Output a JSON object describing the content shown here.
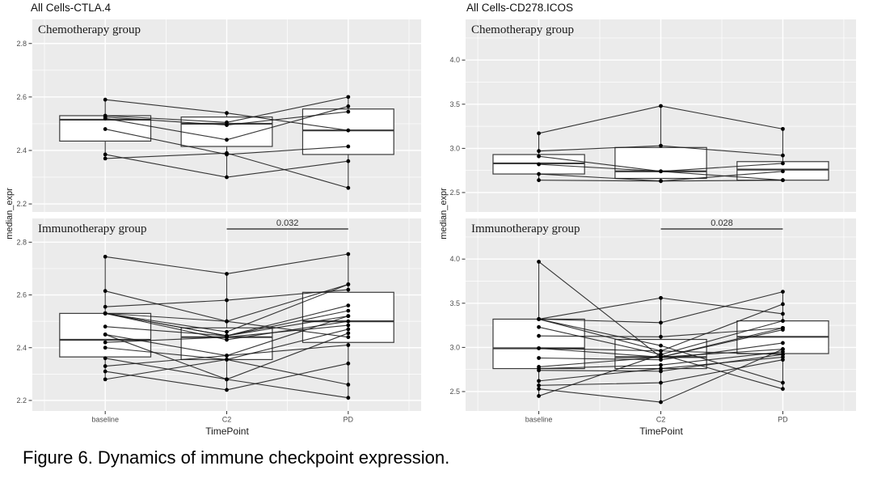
{
  "caption": "Figure 6. Dynamics of immune checkpoint expression.",
  "colors": {
    "panel_bg": "#ebebeb",
    "grid": "#ffffff",
    "box_stroke": "#3a3a3a",
    "box_fill": "#ffffff",
    "point": "#000000",
    "line": "#1a1a1a",
    "tick_label": "#4d4d4d",
    "strip_text": "#1a1a1a",
    "pvalue_line": "#5a5a5a",
    "pvalue_text": "#333333"
  },
  "chart_data": [
    {
      "type": "boxplot-paired-lines",
      "title": "All Cells-CTLA.4",
      "xlabel": "TimePoint",
      "ylabel": "median_expr",
      "categories": [
        "baseline",
        "C2",
        "PD"
      ],
      "panels": [
        {
          "strip": "Chemotherapy group",
          "yticks": [
            2.2,
            2.4,
            2.6,
            2.8
          ],
          "ylim": [
            2.17,
            2.89
          ],
          "boxes": [
            {
              "category": "baseline",
              "q1": 2.435,
              "median": 2.515,
              "q3": 2.53,
              "whisker_low": 2.37,
              "whisker_high": 2.59
            },
            {
              "category": "C2",
              "q1": 2.415,
              "median": 2.5,
              "q3": 2.525,
              "whisker_low": 2.3,
              "whisker_high": 2.54
            },
            {
              "category": "PD",
              "q1": 2.385,
              "median": 2.475,
              "q3": 2.555,
              "whisker_low": 2.26,
              "whisker_high": 2.6
            }
          ],
          "subjects": [
            [
              2.59,
              2.54,
              2.475
            ],
            [
              2.53,
              2.505,
              2.6
            ],
            [
              2.525,
              2.495,
              2.545
            ],
            [
              2.52,
              2.44,
              2.565
            ],
            [
              2.48,
              2.385,
              2.415
            ],
            [
              2.385,
              2.3,
              2.36
            ],
            [
              2.37,
              2.39,
              2.26
            ]
          ],
          "pvalue": null
        },
        {
          "strip": "Immunotherapy group",
          "yticks": [
            2.2,
            2.4,
            2.6,
            2.8
          ],
          "ylim": [
            2.16,
            2.89
          ],
          "boxes": [
            {
              "category": "baseline",
              "q1": 2.365,
              "median": 2.43,
              "q3": 2.53,
              "whisker_low": 2.28,
              "whisker_high": 2.745
            },
            {
              "category": "C2",
              "q1": 2.355,
              "median": 2.44,
              "q3": 2.475,
              "whisker_low": 2.24,
              "whisker_high": 2.68
            },
            {
              "category": "PD",
              "q1": 2.42,
              "median": 2.5,
              "q3": 2.61,
              "whisker_low": 2.21,
              "whisker_high": 2.755
            }
          ],
          "subjects": [
            [
              2.745,
              2.68,
              2.755
            ],
            [
              2.615,
              2.5,
              2.64
            ],
            [
              2.555,
              2.58,
              2.62
            ],
            [
              2.53,
              2.46,
              2.64
            ],
            [
              2.53,
              2.445,
              2.56
            ],
            [
              2.53,
              2.445,
              2.52
            ],
            [
              2.53,
              2.43,
              2.5
            ],
            [
              2.48,
              2.445,
              2.54
            ],
            [
              2.45,
              2.37,
              2.52
            ],
            [
              2.42,
              2.44,
              2.485
            ],
            [
              2.4,
              2.355,
              2.47
            ],
            [
              2.36,
              2.28,
              2.455
            ],
            [
              2.33,
              2.37,
              2.41
            ],
            [
              2.31,
              2.24,
              2.34
            ],
            [
              2.28,
              2.355,
              2.26
            ],
            [
              2.53,
              2.5,
              2.44
            ],
            [
              2.45,
              2.28,
              2.21
            ]
          ],
          "pvalue": {
            "label": "0.032",
            "from": "C2",
            "to": "PD"
          }
        }
      ]
    },
    {
      "type": "boxplot-paired-lines",
      "title": "All Cells-CD278.ICOS",
      "xlabel": "TimePoint",
      "ylabel": "median_expr",
      "categories": [
        "baseline",
        "C2",
        "PD"
      ],
      "panels": [
        {
          "strip": "Chemotherapy group",
          "yticks": [
            2.5,
            3.0,
            3.5,
            4.0
          ],
          "ylim": [
            2.28,
            4.46
          ],
          "boxes": [
            {
              "category": "baseline",
              "q1": 2.71,
              "median": 2.83,
              "q3": 2.93,
              "whisker_low": 2.64,
              "whisker_high": 3.17
            },
            {
              "category": "C2",
              "q1": 2.66,
              "median": 2.74,
              "q3": 3.01,
              "whisker_low": 2.63,
              "whisker_high": 3.48
            },
            {
              "category": "PD",
              "q1": 2.64,
              "median": 2.76,
              "q3": 2.85,
              "whisker_low": 2.64,
              "whisker_high": 3.22
            }
          ],
          "subjects": [
            [
              3.17,
              3.48,
              3.22
            ],
            [
              2.97,
              3.03,
              2.92
            ],
            [
              2.91,
              2.74,
              2.83
            ],
            [
              2.82,
              2.74,
              2.64
            ],
            [
              2.71,
              2.63,
              2.74
            ],
            [
              2.64,
              2.63,
              2.64
            ]
          ],
          "pvalue": null
        },
        {
          "strip": "Immunotherapy group",
          "yticks": [
            2.5,
            3.0,
            3.5,
            4.0
          ],
          "ylim": [
            2.28,
            4.46
          ],
          "boxes": [
            {
              "category": "baseline",
              "q1": 2.76,
              "median": 2.99,
              "q3": 3.32,
              "whisker_low": 2.45,
              "whisker_high": 3.97
            },
            {
              "category": "C2",
              "q1": 2.76,
              "median": 2.89,
              "q3": 3.09,
              "whisker_low": 2.38,
              "whisker_high": 3.56
            },
            {
              "category": "PD",
              "q1": 2.93,
              "median": 3.12,
              "q3": 3.3,
              "whisker_low": 2.53,
              "whisker_high": 3.63
            }
          ],
          "subjects": [
            [
              3.97,
              2.89,
              3.22
            ],
            [
              3.32,
              3.56,
              3.38
            ],
            [
              3.32,
              3.28,
              3.63
            ],
            [
              3.32,
              2.96,
              3.49
            ],
            [
              3.23,
              2.92,
              3.3
            ],
            [
              3.13,
              3.12,
              3.22
            ],
            [
              2.99,
              2.89,
              3.2
            ],
            [
              2.88,
              2.86,
              3.05
            ],
            [
              2.78,
              2.89,
              2.98
            ],
            [
              2.76,
              2.8,
              2.95
            ],
            [
              2.74,
              2.73,
              2.92
            ],
            [
              2.62,
              2.76,
              2.89
            ],
            [
              2.57,
              2.6,
              2.86
            ],
            [
              2.53,
              2.38,
              2.98
            ],
            [
              2.45,
              2.92,
              2.53
            ],
            [
              3.32,
              3.02,
              2.6
            ],
            [
              2.99,
              2.96,
              2.92
            ]
          ],
          "pvalue": {
            "label": "0.028",
            "from": "C2",
            "to": "PD"
          }
        }
      ]
    }
  ]
}
